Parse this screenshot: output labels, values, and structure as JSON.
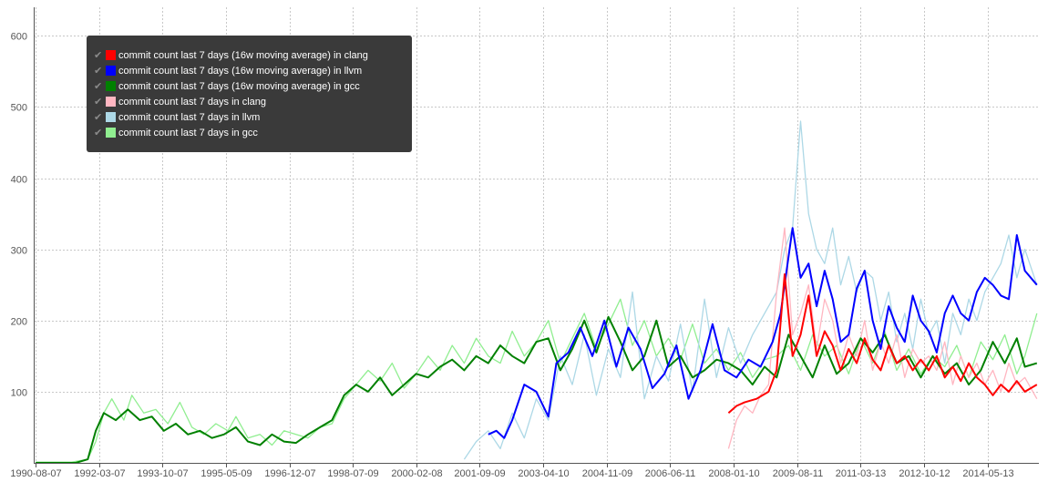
{
  "chart_data": {
    "type": "line",
    "x_ticks": [
      "1990-08-07",
      "1992-03-07",
      "1993-10-07",
      "1995-05-09",
      "1996-12-07",
      "1998-07-09",
      "2000-02-08",
      "2001-09-09",
      "2003-04-10",
      "2004-11-09",
      "2006-06-11",
      "2008-01-10",
      "2009-08-11",
      "2011-03-13",
      "2012-10-12",
      "2014-05-13"
    ],
    "y_ticks": [
      100,
      200,
      300,
      400,
      500,
      600
    ],
    "ylim": [
      0,
      640
    ],
    "xlim": [
      1990.55,
      2015.65
    ],
    "grid": true,
    "legend_position": "top-left",
    "legend": {
      "check_glyph": "✔",
      "items": [
        {
          "label": "commit count last 7 days (16w moving average) in clang",
          "color": "#ff0000"
        },
        {
          "label": "commit count last 7 days (16w moving average) in llvm",
          "color": "#0000ff"
        },
        {
          "label": "commit count last 7 days (16w moving average) in gcc",
          "color": "#008000"
        },
        {
          "label": "commit count last 7 days in clang",
          "color": "#ffb6c1"
        },
        {
          "label": "commit count last 7 days in llvm",
          "color": "#add8e6"
        },
        {
          "label": "commit count last 7 days in gcc",
          "color": "#90ee90"
        }
      ]
    },
    "series": [
      {
        "name": "commit count last 7 days in gcc",
        "color": "#90ee90",
        "width": 1.3,
        "x": [
          1990.6,
          1991.5,
          1991.9,
          1992.1,
          1992.3,
          1992.5,
          1992.8,
          1993.0,
          1993.3,
          1993.6,
          1993.9,
          1994.2,
          1994.5,
          1994.8,
          1995.1,
          1995.4,
          1995.6,
          1995.9,
          1996.2,
          1996.5,
          1996.8,
          1997.1,
          1997.4,
          1997.7,
          1998.0,
          1998.3,
          1998.6,
          1998.9,
          1999.2,
          1999.5,
          1999.8,
          2000.1,
          2000.4,
          2000.7,
          2001.0,
          2001.3,
          2001.6,
          2001.9,
          2002.2,
          2002.5,
          2002.8,
          2003.1,
          2003.4,
          2003.7,
          2004.0,
          2004.3,
          2004.6,
          2004.9,
          2005.2,
          2005.5,
          2005.8,
          2006.1,
          2006.4,
          2006.7,
          2007.0,
          2007.3,
          2007.6,
          2007.9,
          2008.2,
          2008.5,
          2008.8,
          2009.1,
          2009.4,
          2009.7,
          2010.0,
          2010.3,
          2010.6,
          2010.9,
          2011.2,
          2011.5,
          2011.8,
          2012.1,
          2012.4,
          2012.7,
          2013.0,
          2013.3,
          2013.6,
          2013.9,
          2014.2,
          2014.5,
          2014.8,
          2015.1,
          2015.3,
          2015.6
        ],
        "y": [
          1,
          1,
          5,
          30,
          70,
          90,
          60,
          95,
          70,
          75,
          55,
          85,
          50,
          40,
          55,
          45,
          65,
          35,
          40,
          25,
          45,
          40,
          35,
          50,
          55,
          90,
          110,
          130,
          115,
          140,
          105,
          125,
          150,
          130,
          165,
          140,
          175,
          150,
          140,
          185,
          150,
          170,
          200,
          140,
          175,
          210,
          160,
          195,
          230,
          165,
          200,
          150,
          175,
          145,
          195,
          140,
          160,
          130,
          155,
          120,
          145,
          150,
          165,
          130,
          180,
          150,
          165,
          125,
          175,
          140,
          185,
          130,
          160,
          125,
          150,
          135,
          165,
          120,
          170,
          145,
          180,
          125,
          150,
          210
        ]
      },
      {
        "name": "commit count last 7 days in llvm",
        "color": "#add8e6",
        "width": 1.3,
        "x": [
          2001.3,
          2001.6,
          2001.9,
          2002.2,
          2002.5,
          2002.8,
          2003.1,
          2003.4,
          2003.7,
          2004.0,
          2004.3,
          2004.6,
          2004.9,
          2005.2,
          2005.5,
          2005.8,
          2006.1,
          2006.4,
          2006.7,
          2007.0,
          2007.3,
          2007.6,
          2007.9,
          2008.2,
          2008.5,
          2008.8,
          2009.1,
          2009.3,
          2009.5,
          2009.7,
          2009.9,
          2010.1,
          2010.3,
          2010.5,
          2010.7,
          2010.9,
          2011.1,
          2011.3,
          2011.5,
          2011.7,
          2011.9,
          2012.1,
          2012.3,
          2012.5,
          2012.7,
          2012.9,
          2013.1,
          2013.3,
          2013.5,
          2013.7,
          2013.9,
          2014.1,
          2014.3,
          2014.5,
          2014.7,
          2014.9,
          2015.1,
          2015.3,
          2015.6
        ],
        "y": [
          5,
          30,
          45,
          20,
          70,
          35,
          90,
          60,
          150,
          110,
          180,
          95,
          160,
          120,
          240,
          90,
          150,
          115,
          195,
          100,
          230,
          120,
          190,
          140,
          180,
          210,
          240,
          300,
          330,
          480,
          350,
          300,
          280,
          330,
          250,
          290,
          240,
          270,
          260,
          200,
          240,
          170,
          210,
          160,
          230,
          180,
          200,
          140,
          210,
          180,
          230,
          200,
          240,
          260,
          280,
          320,
          260,
          300,
          250
        ]
      },
      {
        "name": "commit count last 7 days in clang",
        "color": "#ffb6c1",
        "width": 1.3,
        "x": [
          2007.9,
          2008.1,
          2008.3,
          2008.5,
          2008.7,
          2008.9,
          2009.1,
          2009.3,
          2009.5,
          2009.7,
          2009.9,
          2010.1,
          2010.3,
          2010.5,
          2010.7,
          2010.9,
          2011.1,
          2011.3,
          2011.5,
          2011.7,
          2011.9,
          2012.1,
          2012.3,
          2012.5,
          2012.7,
          2012.9,
          2013.1,
          2013.3,
          2013.5,
          2013.7,
          2013.9,
          2014.1,
          2014.3,
          2014.5,
          2014.7,
          2014.9,
          2015.1,
          2015.3,
          2015.6
        ],
        "y": [
          20,
          60,
          80,
          70,
          95,
          110,
          240,
          330,
          180,
          210,
          250,
          160,
          230,
          200,
          140,
          180,
          150,
          200,
          130,
          170,
          140,
          180,
          120,
          160,
          140,
          150,
          130,
          170,
          110,
          150,
          120,
          140,
          110,
          130,
          100,
          140,
          110,
          120,
          90
        ]
      },
      {
        "name": "commit count last 7 days (16w moving average) in gcc",
        "color": "#008000",
        "width": 2,
        "x": [
          1990.6,
          1991.6,
          1991.9,
          1992.1,
          1992.3,
          1992.6,
          1992.9,
          1993.2,
          1993.5,
          1993.8,
          1994.1,
          1994.4,
          1994.7,
          1995.0,
          1995.3,
          1995.6,
          1995.9,
          1996.2,
          1996.5,
          1996.8,
          1997.1,
          1997.4,
          1997.7,
          1998.0,
          1998.3,
          1998.6,
          1998.9,
          1999.2,
          1999.5,
          1999.8,
          2000.1,
          2000.4,
          2000.7,
          2001.0,
          2001.3,
          2001.6,
          2001.9,
          2002.2,
          2002.5,
          2002.8,
          2003.1,
          2003.4,
          2003.7,
          2004.0,
          2004.3,
          2004.6,
          2004.9,
          2005.2,
          2005.5,
          2005.8,
          2006.1,
          2006.4,
          2006.7,
          2007.0,
          2007.3,
          2007.6,
          2007.9,
          2008.2,
          2008.5,
          2008.8,
          2009.1,
          2009.4,
          2009.7,
          2010.0,
          2010.3,
          2010.6,
          2010.9,
          2011.2,
          2011.5,
          2011.8,
          2012.1,
          2012.4,
          2012.7,
          2013.0,
          2013.3,
          2013.6,
          2013.9,
          2014.2,
          2014.5,
          2014.8,
          2015.1,
          2015.3,
          2015.6
        ],
        "y": [
          0,
          0,
          5,
          45,
          70,
          60,
          75,
          60,
          65,
          45,
          55,
          40,
          45,
          35,
          40,
          50,
          30,
          25,
          40,
          30,
          28,
          40,
          50,
          60,
          95,
          110,
          100,
          120,
          95,
          110,
          125,
          120,
          135,
          145,
          130,
          150,
          140,
          165,
          150,
          140,
          170,
          175,
          130,
          160,
          200,
          155,
          205,
          170,
          130,
          150,
          200,
          135,
          150,
          120,
          130,
          145,
          140,
          130,
          110,
          135,
          120,
          180,
          150,
          120,
          165,
          125,
          140,
          175,
          155,
          180,
          140,
          150,
          120,
          150,
          125,
          140,
          110,
          130,
          170,
          140,
          175,
          135,
          140
        ]
      },
      {
        "name": "commit count last 7 days (16w moving average) in llvm",
        "color": "#0000ff",
        "width": 2,
        "x": [
          2001.9,
          2002.1,
          2002.3,
          2002.5,
          2002.8,
          2003.1,
          2003.4,
          2003.6,
          2003.9,
          2004.2,
          2004.5,
          2004.8,
          2005.1,
          2005.4,
          2005.7,
          2006.0,
          2006.3,
          2006.6,
          2006.9,
          2007.2,
          2007.5,
          2007.8,
          2008.1,
          2008.4,
          2008.7,
          2009.0,
          2009.2,
          2009.5,
          2009.7,
          2009.9,
          2010.1,
          2010.3,
          2010.5,
          2010.7,
          2010.9,
          2011.1,
          2011.3,
          2011.5,
          2011.7,
          2011.9,
          2012.1,
          2012.3,
          2012.5,
          2012.7,
          2012.9,
          2013.1,
          2013.3,
          2013.5,
          2013.7,
          2013.9,
          2014.1,
          2014.3,
          2014.5,
          2014.7,
          2014.9,
          2015.1,
          2015.3,
          2015.6
        ],
        "y": [
          40,
          45,
          35,
          60,
          110,
          100,
          65,
          140,
          155,
          190,
          150,
          200,
          135,
          190,
          160,
          105,
          125,
          165,
          90,
          130,
          195,
          130,
          120,
          145,
          135,
          170,
          210,
          330,
          260,
          280,
          220,
          270,
          230,
          170,
          180,
          245,
          270,
          200,
          160,
          220,
          190,
          170,
          235,
          200,
          185,
          155,
          210,
          235,
          210,
          200,
          240,
          260,
          250,
          235,
          230,
          320,
          270,
          250
        ]
      },
      {
        "name": "commit count last 7 days (16w moving average) in clang",
        "color": "#ff0000",
        "width": 2,
        "x": [
          2007.9,
          2008.1,
          2008.3,
          2008.6,
          2008.9,
          2009.1,
          2009.3,
          2009.5,
          2009.7,
          2009.9,
          2010.1,
          2010.3,
          2010.5,
          2010.7,
          2010.9,
          2011.1,
          2011.3,
          2011.5,
          2011.7,
          2011.9,
          2012.1,
          2012.3,
          2012.5,
          2012.7,
          2012.9,
          2013.1,
          2013.3,
          2013.5,
          2013.7,
          2013.9,
          2014.1,
          2014.3,
          2014.5,
          2014.7,
          2014.9,
          2015.1,
          2015.3,
          2015.6
        ],
        "y": [
          70,
          80,
          85,
          90,
          100,
          130,
          265,
          150,
          180,
          235,
          150,
          185,
          165,
          130,
          160,
          140,
          175,
          145,
          130,
          165,
          140,
          150,
          130,
          145,
          130,
          150,
          120,
          135,
          115,
          140,
          120,
          110,
          95,
          110,
          100,
          115,
          100,
          110
        ]
      }
    ]
  }
}
